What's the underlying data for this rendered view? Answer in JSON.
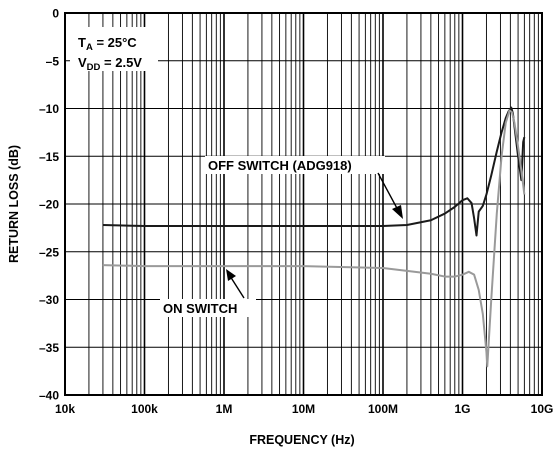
{
  "chart_data": {
    "type": "line",
    "xlabel": "FREQUENCY (Hz)",
    "ylabel": "RETURN LOSS (dB)",
    "x_scale": "log",
    "xlim": [
      10000,
      10000000000
    ],
    "ylim": [
      -40,
      0
    ],
    "grid": true,
    "x_ticks": [
      {
        "value": 10000,
        "label": "10k"
      },
      {
        "value": 100000,
        "label": "100k"
      },
      {
        "value": 1000000,
        "label": "1M"
      },
      {
        "value": 10000000,
        "label": "10M"
      },
      {
        "value": 100000000,
        "label": "100M"
      },
      {
        "value": 1000000000,
        "label": "1G"
      },
      {
        "value": 10000000000,
        "label": "10G"
      }
    ],
    "y_ticks": [
      {
        "value": 0,
        "label": "0"
      },
      {
        "value": -5,
        "label": "–5"
      },
      {
        "value": -10,
        "label": "–10"
      },
      {
        "value": -15,
        "label": "–15"
      },
      {
        "value": -20,
        "label": "–20"
      },
      {
        "value": -25,
        "label": "–25"
      },
      {
        "value": -30,
        "label": "–30"
      },
      {
        "value": -35,
        "label": "–35"
      },
      {
        "value": -40,
        "label": "–40"
      }
    ],
    "conditions": {
      "ta_main": "T",
      "ta_sub": "A",
      "ta_rest": " = 25°C",
      "vdd_main": "V",
      "vdd_sub": "DD",
      "vdd_rest": " = 2.5V"
    },
    "annotations": {
      "off": "OFF SWITCH (ADG918)",
      "on": "ON SWITCH"
    },
    "series": [
      {
        "id": "off",
        "color": "#1a1a1a",
        "x": [
          30000,
          100000,
          1000000,
          10000000,
          100000000,
          200000000,
          400000000,
          600000000,
          800000000,
          1000000000,
          1150000000,
          1300000000,
          1400000000,
          1500000000,
          1600000000,
          1800000000,
          2000000000,
          2300000000,
          2700000000,
          3100000000,
          3500000000,
          3800000000,
          4100000000,
          4300000000,
          4600000000,
          5000000000,
          5500000000,
          5800000000,
          6000000000
        ],
        "y": [
          -22.2,
          -22.3,
          -22.3,
          -22.3,
          -22.3,
          -22.2,
          -21.7,
          -21.0,
          -20.3,
          -19.6,
          -19.4,
          -19.9,
          -21.5,
          -23.3,
          -20.8,
          -20.2,
          -19.0,
          -17.0,
          -14.5,
          -12.5,
          -11.0,
          -10.3,
          -9.9,
          -10.5,
          -12.5,
          -15.0,
          -17.5,
          -13.5,
          -13.0
        ]
      },
      {
        "id": "on",
        "color": "#9a9a9a",
        "x": [
          30000,
          100000,
          1000000,
          10000000,
          100000000,
          200000000,
          400000000,
          600000000,
          800000000,
          1000000000,
          1200000000,
          1400000000,
          1600000000,
          1800000000,
          2000000000,
          2050000000,
          2100000000,
          2300000000,
          2700000000,
          3100000000,
          3500000000,
          3900000000,
          4200000000,
          4500000000,
          4900000000,
          5300000000,
          5700000000,
          6000000000
        ],
        "y": [
          -26.4,
          -26.5,
          -26.5,
          -26.5,
          -26.7,
          -27.0,
          -27.3,
          -27.6,
          -27.6,
          -27.4,
          -27.1,
          -27.4,
          -29.0,
          -31.5,
          -35.5,
          -37.0,
          -35.5,
          -30.0,
          -21.0,
          -15.0,
          -11.5,
          -10.2,
          -10.4,
          -11.5,
          -13.5,
          -15.5,
          -17.5,
          -19.0
        ]
      }
    ]
  }
}
